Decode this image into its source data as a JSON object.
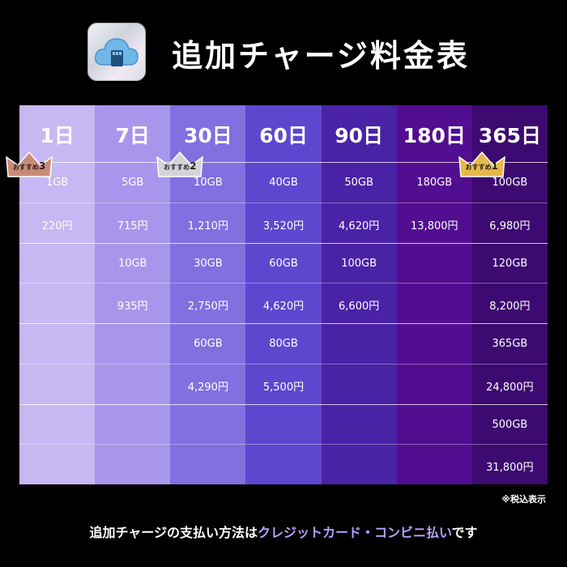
{
  "header": {
    "title": "追加チャージ料金表",
    "icon": "cloud-sd-card-icon"
  },
  "table": {
    "columns": [
      {
        "label": "1日",
        "color": "#c6b8f2",
        "cells": [
          "1GB",
          "220円",
          "",
          "",
          "",
          "",
          "",
          ""
        ]
      },
      {
        "label": "7日",
        "color": "#a896ec",
        "cells": [
          "5GB",
          "715円",
          "10GB",
          "935円",
          "",
          "",
          "",
          ""
        ]
      },
      {
        "label": "30日",
        "color": "#8070e0",
        "cells": [
          "10GB",
          "1,210円",
          "30GB",
          "2,750円",
          "60GB",
          "4,290円",
          "",
          ""
        ]
      },
      {
        "label": "60日",
        "color": "#5e47cf",
        "cells": [
          "40GB",
          "3,520円",
          "60GB",
          "4,620円",
          "80GB",
          "5,500円",
          "",
          ""
        ]
      },
      {
        "label": "90日",
        "color": "#4a22a6",
        "cells": [
          "50GB",
          "4,620円",
          "100GB",
          "6,600円",
          "",
          "",
          "",
          ""
        ]
      },
      {
        "label": "180日",
        "color": "#520e90",
        "cells": [
          "180GB",
          "13,800円",
          "",
          "",
          "",
          "",
          "",
          ""
        ]
      },
      {
        "label": "365日",
        "color": "#3c0a70",
        "cells": [
          "100GB",
          "6,980円",
          "120GB",
          "8,200円",
          "365GB",
          "24,800円",
          "500GB",
          "31,800円"
        ]
      }
    ],
    "badges": [
      {
        "text": "おすすめ",
        "rank": "3",
        "column": 0,
        "color": "#c98a78"
      },
      {
        "text": "おすすめ",
        "rank": "2",
        "column": 2,
        "color": "#d4d4d8"
      },
      {
        "text": "おすすめ",
        "rank": "1",
        "column": 6,
        "color": "#e6b84a"
      }
    ]
  },
  "tax_note": "※税込表示",
  "footer": {
    "part1": "追加チャージの支払い方法は",
    "highlight": "クレジットカード・コンビニ払い",
    "part2": "です"
  }
}
